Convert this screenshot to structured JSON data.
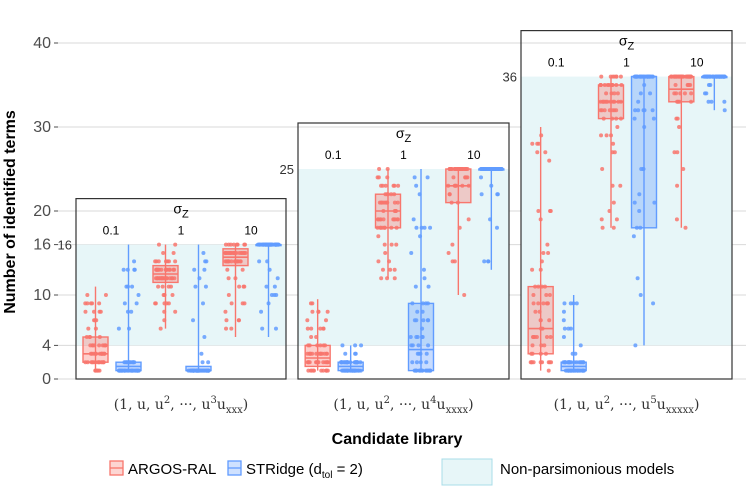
{
  "chart_data": {
    "type": "boxplot",
    "ylabel": "Number of identified terms",
    "xlabel": "Candidate library",
    "yticks": [
      0,
      4,
      10,
      16,
      20,
      30,
      40
    ],
    "ylim": [
      0,
      41
    ],
    "facet_label": "σ",
    "facet_label_sub": "Z",
    "noise_levels": [
      "0.1",
      "1",
      "10"
    ],
    "series": [
      {
        "name": "ARGOS-RAL",
        "color": "#f8766d"
      },
      {
        "name": "STRidge",
        "color": "#619cff"
      }
    ],
    "legend": {
      "argos_label": "ARGOS-RAL",
      "stridge_label": "STRidge (d",
      "stridge_sub": "tol",
      "stridge_tail": " = 2)",
      "region_label": "Non-parsimonious models"
    },
    "groups": [
      {
        "library": "(1, u, u², ···, u³uxxx)",
        "lib_main": "(1, u, u",
        "lib_mid": ", ···, u",
        "lib_pow1": "2",
        "lib_pow2": "3",
        "lib_sub": "xxx",
        "lib_end": ")",
        "max_terms": 16,
        "max_label": "16",
        "boxes": {
          "ARGOS-RAL": [
            {
              "noise": "0.1",
              "min": 1,
              "q1": 2,
              "median": 3,
              "q3": 5,
              "max": 11
            },
            {
              "noise": "1",
              "min": 6,
              "q1": 11.5,
              "median": 12.5,
              "q3": 13.5,
              "max": 16
            },
            {
              "noise": "10",
              "min": 5,
              "q1": 13.5,
              "median": 14.5,
              "q3": 15.5,
              "max": 16
            }
          ],
          "STRidge": [
            {
              "noise": "0.1",
              "min": 1,
              "q1": 1,
              "median": 1.5,
              "q3": 2,
              "max": 16
            },
            {
              "noise": "1",
              "min": 1,
              "q1": 1,
              "median": 1,
              "q3": 1.5,
              "max": 16
            },
            {
              "noise": "10",
              "min": 5,
              "q1": 16,
              "median": 16,
              "q3": 16,
              "max": 16
            }
          ]
        }
      },
      {
        "library": "(1, u, u², ···, u⁴uxxxx)",
        "lib_main": "(1, u, u",
        "lib_mid": ", ···, u",
        "lib_pow1": "2",
        "lib_pow2": "4",
        "lib_sub": "xxxx",
        "lib_end": ")",
        "max_terms": 25,
        "max_label": "25",
        "boxes": {
          "ARGOS-RAL": [
            {
              "noise": "0.1",
              "min": 1,
              "q1": 1.5,
              "median": 2.5,
              "q3": 4,
              "max": 9.5
            },
            {
              "noise": "1",
              "min": 12,
              "q1": 18,
              "median": 20,
              "q3": 22,
              "max": 25
            },
            {
              "noise": "10",
              "min": 10,
              "q1": 21,
              "median": 23,
              "q3": 25,
              "max": 25
            }
          ],
          "STRidge": [
            {
              "noise": "0.1",
              "min": 1,
              "q1": 1,
              "median": 1.5,
              "q3": 2,
              "max": 4
            },
            {
              "noise": "1",
              "min": 1,
              "q1": 1,
              "median": 3.5,
              "q3": 9,
              "max": 25
            },
            {
              "noise": "10",
              "min": 13,
              "q1": 25,
              "median": 25,
              "q3": 25,
              "max": 25
            }
          ]
        }
      },
      {
        "library": "(1, u, u², ···, u⁵uxxxxx)",
        "lib_main": "(1, u, u",
        "lib_mid": ", ···, u",
        "lib_pow1": "2",
        "lib_pow2": "5",
        "lib_sub": "xxxxx",
        "lib_end": ")",
        "max_terms": 36,
        "max_label": "36",
        "boxes": {
          "ARGOS-RAL": [
            {
              "noise": "0.1",
              "min": 1,
              "q1": 3,
              "median": 6,
              "q3": 11,
              "max": 30
            },
            {
              "noise": "1",
              "min": 18,
              "q1": 31,
              "median": 33,
              "q3": 35,
              "max": 36
            },
            {
              "noise": "10",
              "min": 18,
              "q1": 33,
              "median": 34.5,
              "q3": 36,
              "max": 36
            }
          ],
          "STRidge": [
            {
              "noise": "0.1",
              "min": 1,
              "q1": 1,
              "median": 1.5,
              "q3": 2,
              "max": 10
            },
            {
              "noise": "1",
              "min": 4,
              "q1": 18,
              "median": 36,
              "q3": 36,
              "max": 36
            },
            {
              "noise": "10",
              "min": 32,
              "q1": 36,
              "median": 36,
              "q3": 36,
              "max": 36
            }
          ]
        }
      }
    ]
  }
}
